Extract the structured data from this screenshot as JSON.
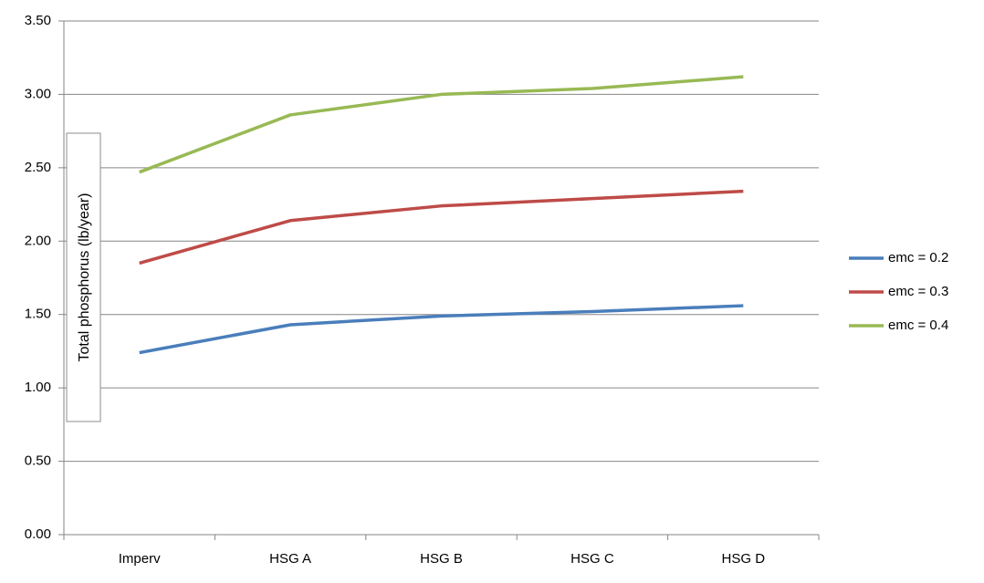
{
  "chart_data": {
    "type": "line",
    "y_label": "Total phosphorus (lb/year)",
    "categories": [
      "Imperv",
      "HSG A",
      "HSG B",
      "HSG C",
      "HSG D"
    ],
    "series": [
      {
        "name": "emc = 0.2",
        "color": "#4a7ebb",
        "values": [
          1.24,
          1.43,
          1.49,
          1.52,
          1.56
        ]
      },
      {
        "name": "emc = 0.3",
        "color": "#be4b48",
        "values": [
          1.85,
          2.14,
          2.24,
          2.29,
          2.34
        ]
      },
      {
        "name": "emc = 0.4",
        "color": "#98b954",
        "values": [
          2.47,
          2.86,
          3.0,
          3.04,
          3.12
        ]
      }
    ],
    "ylim": [
      0,
      3.5
    ],
    "yticks": [
      {
        "value": 0,
        "label": "0.00"
      },
      {
        "value": 0.5,
        "label": "0.50"
      },
      {
        "value": 1,
        "label": "1.00"
      },
      {
        "value": 1.5,
        "label": "1.50"
      },
      {
        "value": 2,
        "label": "2.00"
      },
      {
        "value": 2.5,
        "label": "2.50"
      },
      {
        "value": 3,
        "label": "3.00"
      },
      {
        "value": 3.5,
        "label": "3.50"
      }
    ],
    "grid": true,
    "legend": "right"
  }
}
